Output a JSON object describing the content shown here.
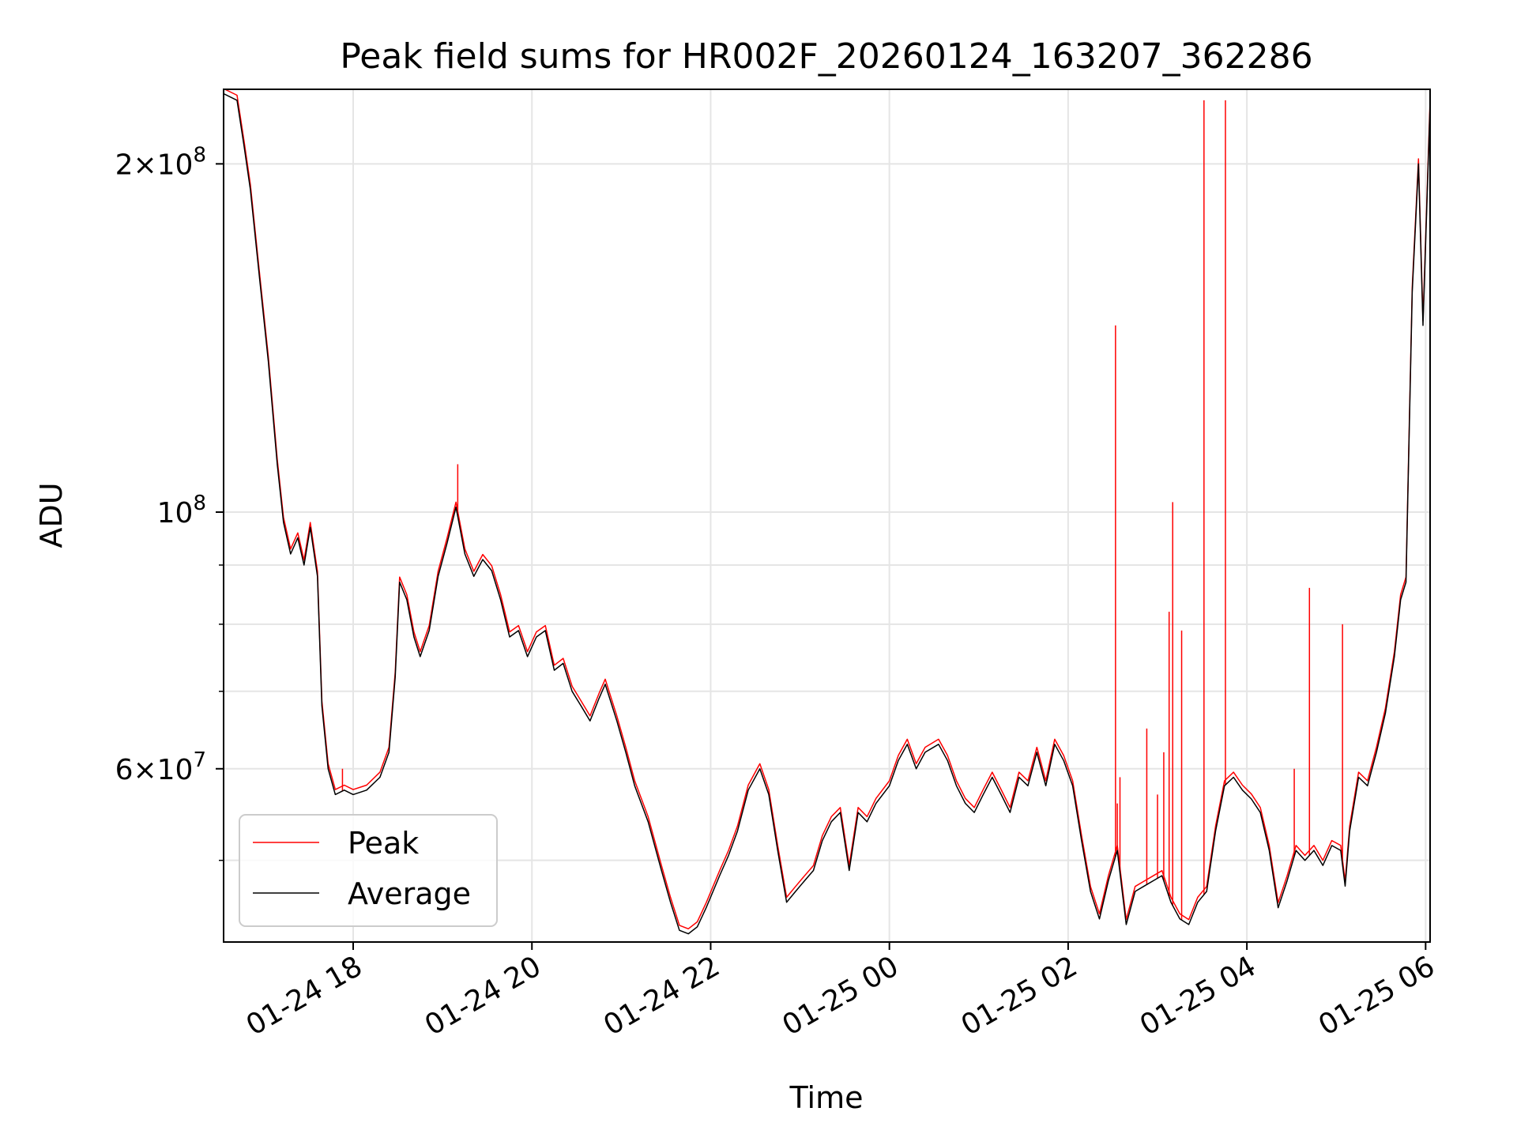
{
  "chart_data": {
    "type": "line",
    "title": "Peak field sums for HR002F_20260124_163207_362286",
    "xlabel": "Time",
    "ylabel": "ADU",
    "yscale": "log",
    "ylim": [
      42500000,
      232000000
    ],
    "xlim_hours": [
      16.55,
      30.05
    ],
    "grid": true,
    "legend_position": "lower-left",
    "x_ticks": [
      {
        "hour": 18,
        "label": "01-24 18"
      },
      {
        "hour": 20,
        "label": "01-24 20"
      },
      {
        "hour": 22,
        "label": "01-24 22"
      },
      {
        "hour": 24,
        "label": "01-25 00"
      },
      {
        "hour": 26,
        "label": "01-25 02"
      },
      {
        "hour": 28,
        "label": "01-25 04"
      },
      {
        "hour": 30,
        "label": "01-25 06"
      }
    ],
    "y_major_ticks": [
      {
        "value": 60000000,
        "mantissa": "6",
        "exp": "7"
      },
      {
        "value": 100000000,
        "mantissa": "",
        "exp": "8"
      },
      {
        "value": 200000000,
        "mantissa": "2",
        "exp": "8"
      }
    ],
    "y_minor_ticks": [
      50000000,
      70000000,
      80000000,
      90000000
    ],
    "series": [
      {
        "name": "Average",
        "color": "#000000",
        "points": [
          [
            16.55,
            230000000
          ],
          [
            16.7,
            227000000
          ],
          [
            16.78,
            207000000
          ],
          [
            16.85,
            190000000
          ],
          [
            16.95,
            160000000
          ],
          [
            17.05,
            135000000
          ],
          [
            17.15,
            110000000
          ],
          [
            17.22,
            98000000
          ],
          [
            17.3,
            92000000
          ],
          [
            17.38,
            95000000
          ],
          [
            17.45,
            90000000
          ],
          [
            17.52,
            97000000
          ],
          [
            17.6,
            88000000
          ],
          [
            17.65,
            68000000
          ],
          [
            17.72,
            60000000
          ],
          [
            17.8,
            57000000
          ],
          [
            17.9,
            57500000
          ],
          [
            18.0,
            57000000
          ],
          [
            18.15,
            57500000
          ],
          [
            18.3,
            59000000
          ],
          [
            18.4,
            62000000
          ],
          [
            18.47,
            72000000
          ],
          [
            18.52,
            87000000
          ],
          [
            18.6,
            84000000
          ],
          [
            18.68,
            78000000
          ],
          [
            18.75,
            75000000
          ],
          [
            18.85,
            79000000
          ],
          [
            18.95,
            88000000
          ],
          [
            19.05,
            94000000
          ],
          [
            19.15,
            101000000
          ],
          [
            19.25,
            92000000
          ],
          [
            19.35,
            88000000
          ],
          [
            19.45,
            91000000
          ],
          [
            19.55,
            89000000
          ],
          [
            19.65,
            84000000
          ],
          [
            19.75,
            78000000
          ],
          [
            19.85,
            79000000
          ],
          [
            19.95,
            75000000
          ],
          [
            20.05,
            78000000
          ],
          [
            20.15,
            79000000
          ],
          [
            20.25,
            73000000
          ],
          [
            20.35,
            74000000
          ],
          [
            20.45,
            70000000
          ],
          [
            20.55,
            68000000
          ],
          [
            20.65,
            66000000
          ],
          [
            20.75,
            69000000
          ],
          [
            20.82,
            71000000
          ],
          [
            20.95,
            66000000
          ],
          [
            21.05,
            62000000
          ],
          [
            21.15,
            58000000
          ],
          [
            21.3,
            54000000
          ],
          [
            21.45,
            49000000
          ],
          [
            21.55,
            46000000
          ],
          [
            21.65,
            43500000
          ],
          [
            21.75,
            43200000
          ],
          [
            21.85,
            43800000
          ],
          [
            21.95,
            45500000
          ],
          [
            22.1,
            48500000
          ],
          [
            22.2,
            50500000
          ],
          [
            22.3,
            53000000
          ],
          [
            22.42,
            57500000
          ],
          [
            22.55,
            60000000
          ],
          [
            22.65,
            57000000
          ],
          [
            22.75,
            51000000
          ],
          [
            22.85,
            46000000
          ],
          [
            22.95,
            47000000
          ],
          [
            23.05,
            48000000
          ],
          [
            23.15,
            49000000
          ],
          [
            23.25,
            52000000
          ],
          [
            23.35,
            54000000
          ],
          [
            23.45,
            55000000
          ],
          [
            23.55,
            49000000
          ],
          [
            23.65,
            55000000
          ],
          [
            23.75,
            54000000
          ],
          [
            23.85,
            56000000
          ],
          [
            24.0,
            58000000
          ],
          [
            24.1,
            61000000
          ],
          [
            24.2,
            63000000
          ],
          [
            24.3,
            60000000
          ],
          [
            24.4,
            62000000
          ],
          [
            24.55,
            63000000
          ],
          [
            24.65,
            61000000
          ],
          [
            24.75,
            58000000
          ],
          [
            24.85,
            56000000
          ],
          [
            24.95,
            55000000
          ],
          [
            25.05,
            57000000
          ],
          [
            25.15,
            59000000
          ],
          [
            25.25,
            57000000
          ],
          [
            25.35,
            55000000
          ],
          [
            25.45,
            59000000
          ],
          [
            25.55,
            58000000
          ],
          [
            25.65,
            62000000
          ],
          [
            25.75,
            58000000
          ],
          [
            25.85,
            63000000
          ],
          [
            25.95,
            61000000
          ],
          [
            26.05,
            58000000
          ],
          [
            26.15,
            52000000
          ],
          [
            26.25,
            47000000
          ],
          [
            26.35,
            44500000
          ],
          [
            26.45,
            48000000
          ],
          [
            26.55,
            51000000
          ],
          [
            26.65,
            44000000
          ],
          [
            26.75,
            47000000
          ],
          [
            26.85,
            47500000
          ],
          [
            26.95,
            48000000
          ],
          [
            27.05,
            48500000
          ],
          [
            27.15,
            46000000
          ],
          [
            27.25,
            44500000
          ],
          [
            27.35,
            44000000
          ],
          [
            27.45,
            46000000
          ],
          [
            27.55,
            47000000
          ],
          [
            27.65,
            53000000
          ],
          [
            27.75,
            58000000
          ],
          [
            27.85,
            59000000
          ],
          [
            27.95,
            57500000
          ],
          [
            28.05,
            56500000
          ],
          [
            28.15,
            55000000
          ],
          [
            28.25,
            51000000
          ],
          [
            28.35,
            45500000
          ],
          [
            28.45,
            48000000
          ],
          [
            28.55,
            51000000
          ],
          [
            28.65,
            50000000
          ],
          [
            28.75,
            51000000
          ],
          [
            28.85,
            49500000
          ],
          [
            28.95,
            51500000
          ],
          [
            29.05,
            51000000
          ],
          [
            29.1,
            47500000
          ],
          [
            29.15,
            53000000
          ],
          [
            29.25,
            59000000
          ],
          [
            29.35,
            58000000
          ],
          [
            29.45,
            62000000
          ],
          [
            29.55,
            67000000
          ],
          [
            29.65,
            75000000
          ],
          [
            29.72,
            84000000
          ],
          [
            29.78,
            87000000
          ],
          [
            29.85,
            155000000
          ],
          [
            29.92,
            200000000
          ],
          [
            29.97,
            145000000
          ],
          [
            30.05,
            225000000
          ]
        ]
      },
      {
        "name": "Peak",
        "color": "#ff0000",
        "spikes": [
          [
            19.17,
            110000000
          ],
          [
            17.88,
            60000000
          ],
          [
            26.53,
            145000000
          ],
          [
            26.55,
            56000000
          ],
          [
            26.58,
            59000000
          ],
          [
            26.88,
            65000000
          ],
          [
            27.0,
            57000000
          ],
          [
            27.07,
            62000000
          ],
          [
            27.13,
            82000000
          ],
          [
            27.17,
            102000000
          ],
          [
            27.27,
            79000000
          ],
          [
            27.52,
            227000000
          ],
          [
            27.76,
            227000000
          ],
          [
            28.53,
            60000000
          ],
          [
            28.7,
            86000000
          ],
          [
            29.07,
            80000000
          ]
        ]
      }
    ]
  }
}
